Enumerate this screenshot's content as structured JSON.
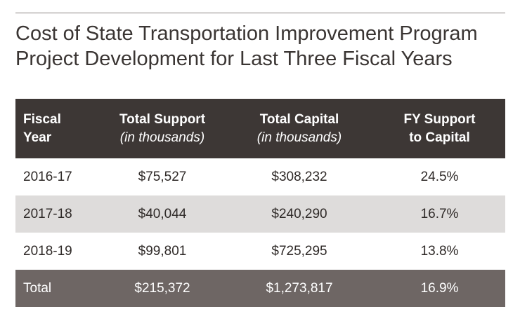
{
  "title": {
    "line1": "Cost of State Transportation Improvement Program",
    "line2": "Project Development for Last Three Fiscal Years"
  },
  "table": {
    "headers": [
      {
        "line1": "Fiscal",
        "line2": "Year"
      },
      {
        "line1": "Total Support",
        "line2": "(in thousands)"
      },
      {
        "line1": "Total Capital",
        "line2": "(in thousands)"
      },
      {
        "line1": "FY Support",
        "line2": "to Capital"
      }
    ],
    "rows": [
      [
        "2016-17",
        "$75,527",
        "$308,232",
        "24.5%"
      ],
      [
        "2017-18",
        "$40,044",
        "$240,290",
        "16.7%"
      ],
      [
        "2018-19",
        "$99,801",
        "$725,295",
        "13.8%"
      ]
    ],
    "total": [
      "Total",
      "$215,372",
      "$1,273,817",
      "16.9%"
    ]
  },
  "colors": {
    "header_bg": "#3d3735",
    "alt_row_bg": "#dedcdb",
    "total_bg": "#6e6664"
  }
}
